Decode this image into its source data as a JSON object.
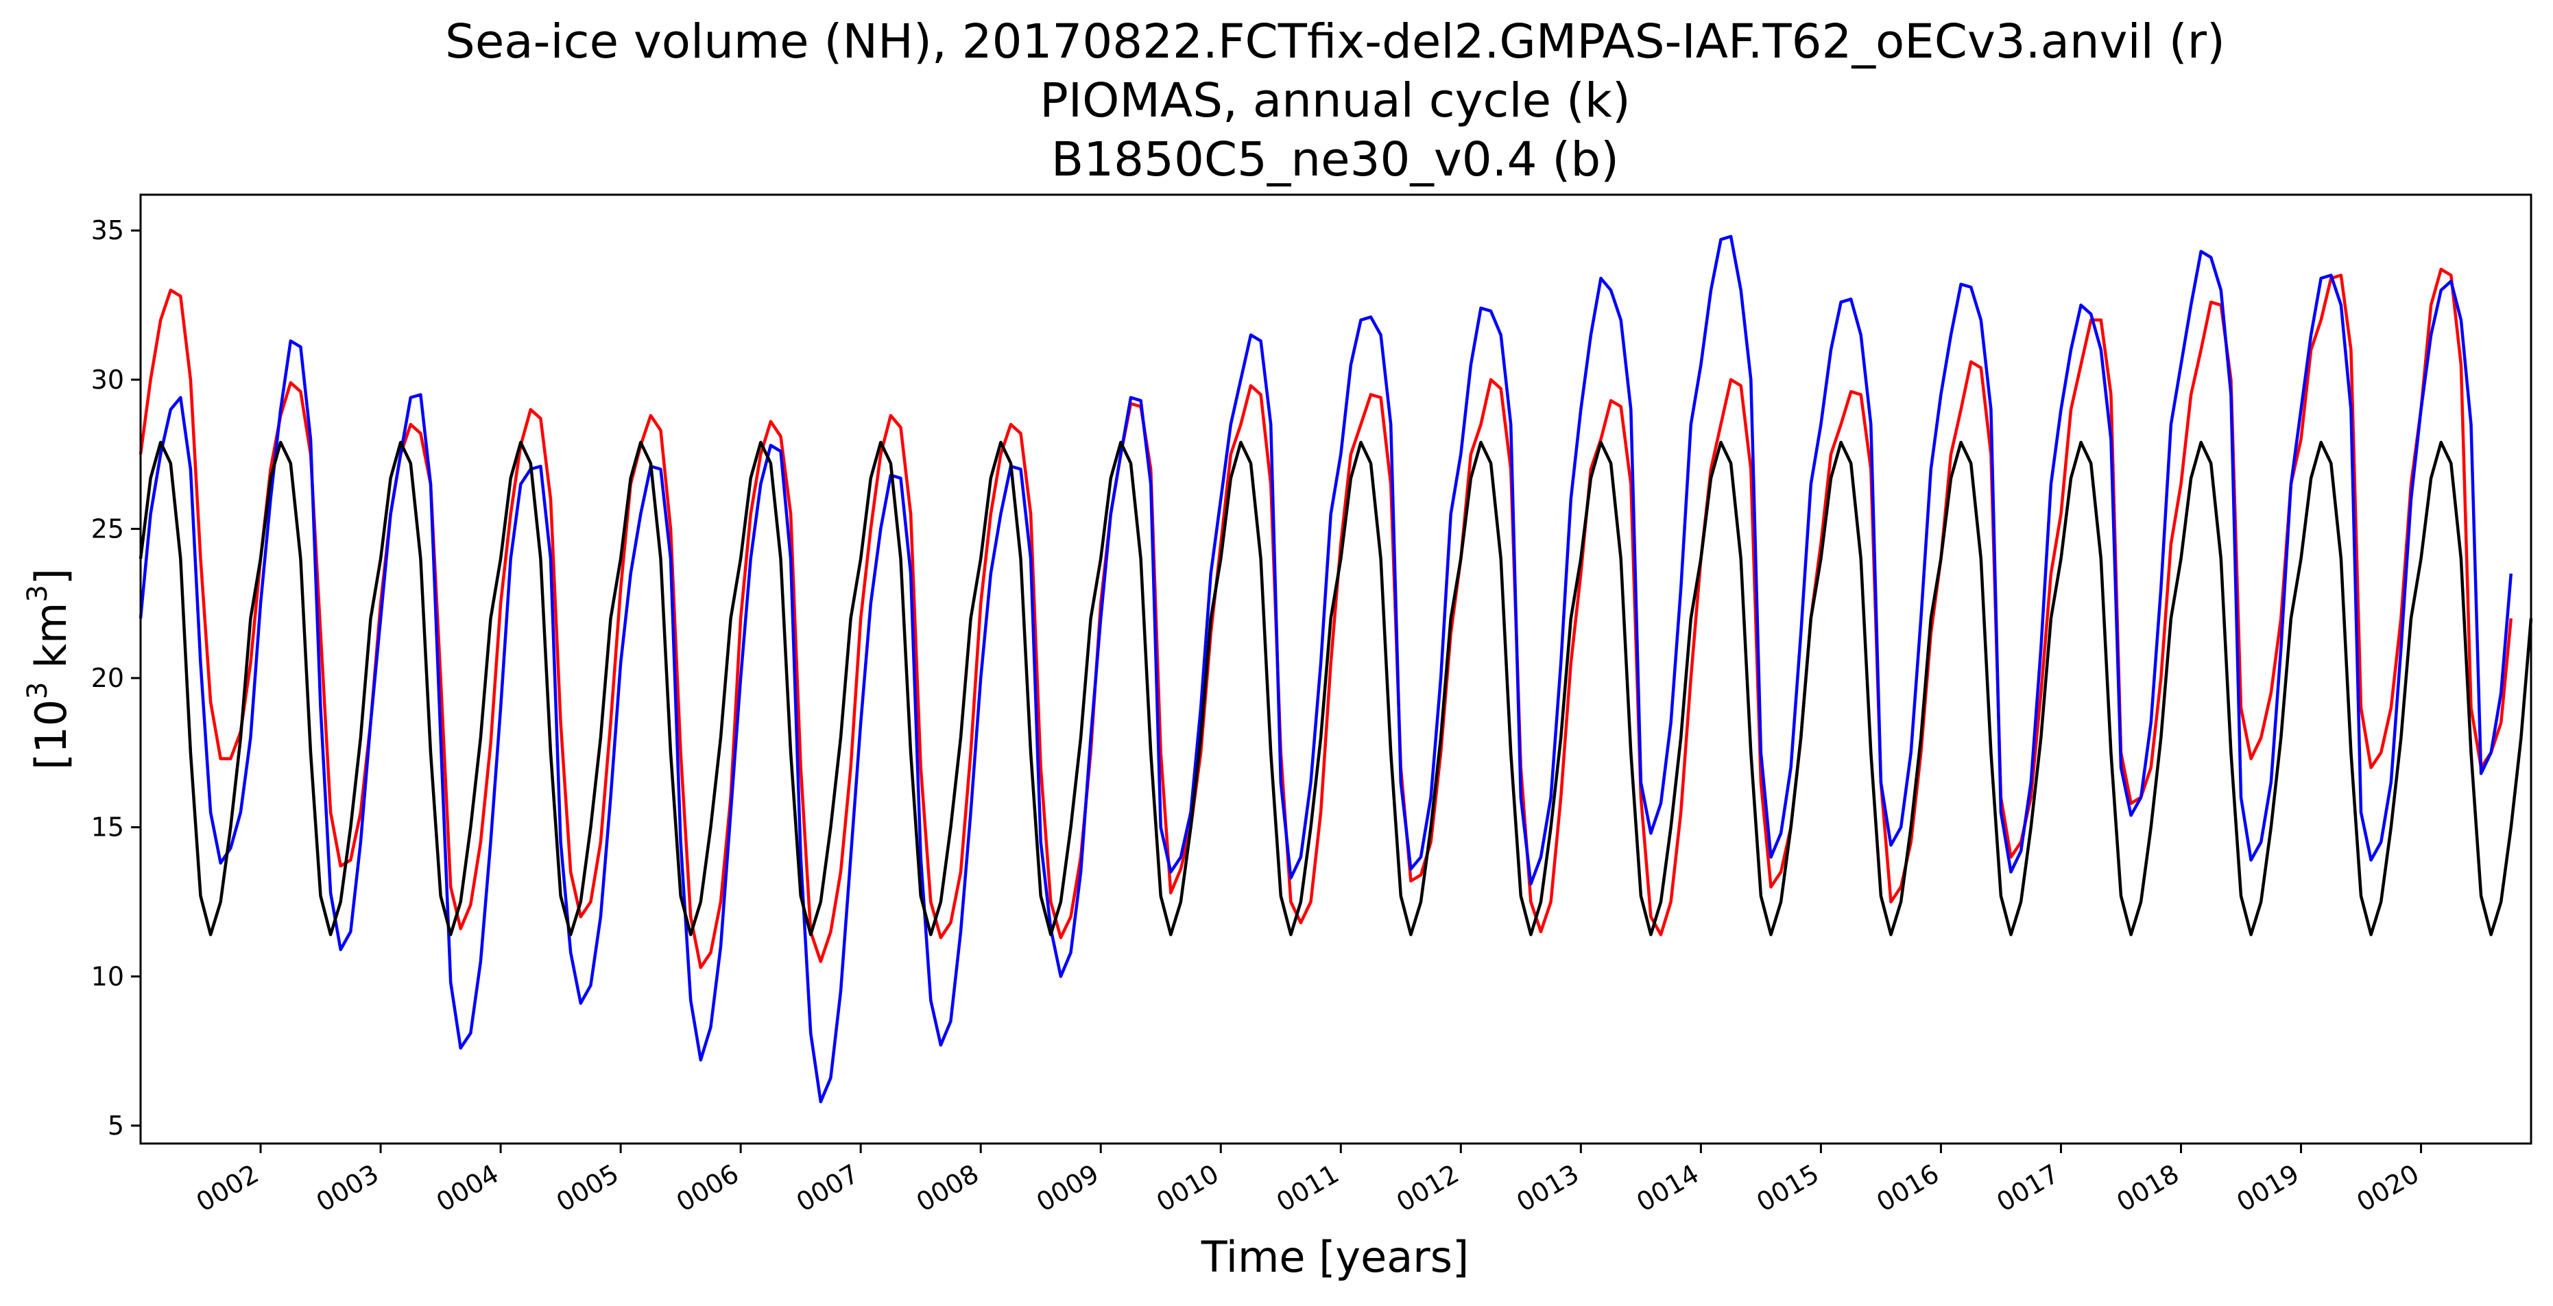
{
  "chart_data": {
    "type": "line",
    "title_lines": [
      "Sea-ice volume (NH), 20170822.FCTfix-del2.GMPAS-IAF.T62_oECv3.anvil (r)",
      "PIOMAS, annual cycle (k)",
      "B1850C5_ne30_v0.4 (b)"
    ],
    "xlabel": "Time [years]",
    "ylabel": {
      "prefix": "[10",
      "sup1": "3",
      "mid": " km",
      "sup2": "3",
      "suffix": "]"
    },
    "xlim": [
      1.0,
      20.9167
    ],
    "ylim": [
      4.4,
      36.2
    ],
    "x_ticks": [
      {
        "value": 2,
        "label": "0002"
      },
      {
        "value": 3,
        "label": "0003"
      },
      {
        "value": 4,
        "label": "0004"
      },
      {
        "value": 5,
        "label": "0005"
      },
      {
        "value": 6,
        "label": "0006"
      },
      {
        "value": 7,
        "label": "0007"
      },
      {
        "value": 8,
        "label": "0008"
      },
      {
        "value": 9,
        "label": "0009"
      },
      {
        "value": 10,
        "label": "0010"
      },
      {
        "value": 11,
        "label": "0011"
      },
      {
        "value": 12,
        "label": "0012"
      },
      {
        "value": 13,
        "label": "0013"
      },
      {
        "value": 14,
        "label": "0014"
      },
      {
        "value": 15,
        "label": "0015"
      },
      {
        "value": 16,
        "label": "0016"
      },
      {
        "value": 17,
        "label": "0017"
      },
      {
        "value": 18,
        "label": "0018"
      },
      {
        "value": 19,
        "label": "0019"
      },
      {
        "value": 20,
        "label": "0020"
      }
    ],
    "y_ticks": [
      {
        "value": 5,
        "label": "5"
      },
      {
        "value": 10,
        "label": "10"
      },
      {
        "value": 15,
        "label": "15"
      },
      {
        "value": 20,
        "label": "20"
      },
      {
        "value": 25,
        "label": "25"
      },
      {
        "value": 30,
        "label": "30"
      },
      {
        "value": 35,
        "label": "35"
      }
    ],
    "grid": false,
    "legend": "none",
    "x_start": 1.0,
    "x_step": 0.0833333,
    "series": [
      {
        "color": "#ff0000",
        "values": [
          27.5,
          30.0,
          32.0,
          33.0,
          32.8,
          30.0,
          24.0,
          19.2,
          17.3,
          17.3,
          18.2,
          20.5,
          24.0,
          27.0,
          28.8,
          29.9,
          29.6,
          27.5,
          21.5,
          15.5,
          13.7,
          13.9,
          15.5,
          18.5,
          22.5,
          25.5,
          27.5,
          28.5,
          28.2,
          26.5,
          20.0,
          13.0,
          11.6,
          12.4,
          14.5,
          17.8,
          22.5,
          25.5,
          27.8,
          29.0,
          28.7,
          26.0,
          18.5,
          13.5,
          12.0,
          12.5,
          14.5,
          18.5,
          23.0,
          26.5,
          27.8,
          28.8,
          28.3,
          25.0,
          17.5,
          12.0,
          10.3,
          10.8,
          12.5,
          16.0,
          22.0,
          25.5,
          27.5,
          28.6,
          28.1,
          25.5,
          17.0,
          11.5,
          10.5,
          11.5,
          13.5,
          17.0,
          22.0,
          25.0,
          27.5,
          28.8,
          28.4,
          25.5,
          17.0,
          12.5,
          11.3,
          11.8,
          13.5,
          17.5,
          22.5,
          25.5,
          27.5,
          28.5,
          28.2,
          25.5,
          17.0,
          12.5,
          11.3,
          12.0,
          14.0,
          17.5,
          22.5,
          25.5,
          27.5,
          29.2,
          29.1,
          27.0,
          17.5,
          12.8,
          13.6,
          15.0,
          17.5,
          21.5,
          24.5,
          27.5,
          28.5,
          29.8,
          29.5,
          26.5,
          17.5,
          12.5,
          11.8,
          12.5,
          15.5,
          20.5,
          24.5,
          27.5,
          28.5,
          29.5,
          29.4,
          26.5,
          17.0,
          13.2,
          13.4,
          14.5,
          17.5,
          21.5,
          24.0,
          27.5,
          28.5,
          30.0,
          29.7,
          27.0,
          17.0,
          12.5,
          11.5,
          12.5,
          16.0,
          20.5,
          23.5,
          27.0,
          28.0,
          29.3,
          29.1,
          26.5,
          16.0,
          12.0,
          11.4,
          12.5,
          15.5,
          20.0,
          24.0,
          27.0,
          28.5,
          30.0,
          29.8,
          27.0,
          16.5,
          13.0,
          13.5,
          15.0,
          18.0,
          22.0,
          24.5,
          27.5,
          28.5,
          29.6,
          29.5,
          27.0,
          16.5,
          12.5,
          13.0,
          14.5,
          17.5,
          21.5,
          24.0,
          27.5,
          29.0,
          30.6,
          30.4,
          27.5,
          16.0,
          14.0,
          14.5,
          16.0,
          19.5,
          23.5,
          25.5,
          29.0,
          30.5,
          32.0,
          32.0,
          29.5,
          17.5,
          15.8,
          16.0,
          17.0,
          20.0,
          24.5,
          26.5,
          29.5,
          31.0,
          32.6,
          32.5,
          30.0,
          19.0,
          17.3,
          18.0,
          19.5,
          22.0,
          26.5,
          28.0,
          31.0,
          32.0,
          33.4,
          33.5,
          31.0,
          19.0,
          17.0,
          17.5,
          19.0,
          22.0,
          26.5,
          29.0,
          32.5,
          33.7,
          33.5,
          30.5,
          19.0,
          17.0,
          17.5,
          18.5,
          22.0
        ]
      },
      {
        "color": "#0000ff",
        "values": [
          22.0,
          25.5,
          27.5,
          29.0,
          29.4,
          27.0,
          20.5,
          15.5,
          13.8,
          14.3,
          15.5,
          18.0,
          22.5,
          26.0,
          29.0,
          31.3,
          31.1,
          28.0,
          19.0,
          12.8,
          10.9,
          11.5,
          14.5,
          18.5,
          22.0,
          25.5,
          27.5,
          29.4,
          29.5,
          26.5,
          18.0,
          9.8,
          7.6,
          8.1,
          10.5,
          14.5,
          19.0,
          24.0,
          26.5,
          27.0,
          27.1,
          24.0,
          14.5,
          10.8,
          9.1,
          9.7,
          12.0,
          16.0,
          20.5,
          23.5,
          25.5,
          27.1,
          27.0,
          24.0,
          14.5,
          9.2,
          7.2,
          8.3,
          11.0,
          15.5,
          20.0,
          24.0,
          26.5,
          27.8,
          27.6,
          24.0,
          14.0,
          8.1,
          5.8,
          6.6,
          9.5,
          14.0,
          18.5,
          22.5,
          25.0,
          26.8,
          26.7,
          23.5,
          14.0,
          9.2,
          7.7,
          8.5,
          11.5,
          15.5,
          20.0,
          23.5,
          25.5,
          27.1,
          27.0,
          24.0,
          14.5,
          11.6,
          10.0,
          10.8,
          13.5,
          18.0,
          22.0,
          25.5,
          27.5,
          29.4,
          29.3,
          26.5,
          15.0,
          13.5,
          14.0,
          15.5,
          19.0,
          23.5,
          26.0,
          28.5,
          30.0,
          31.5,
          31.3,
          28.5,
          16.5,
          13.3,
          14.0,
          16.5,
          20.5,
          25.5,
          27.5,
          30.5,
          32.0,
          32.1,
          31.5,
          28.5,
          16.5,
          13.6,
          14.0,
          16.0,
          20.0,
          25.5,
          27.5,
          30.5,
          32.4,
          32.3,
          31.5,
          28.5,
          16.0,
          13.1,
          14.0,
          16.0,
          20.5,
          26.0,
          29.0,
          31.5,
          33.4,
          33.0,
          32.0,
          29.0,
          16.5,
          14.8,
          15.8,
          18.5,
          23.0,
          28.5,
          30.5,
          33.0,
          34.7,
          34.8,
          33.0,
          30.0,
          17.5,
          14.0,
          14.8,
          17.0,
          21.5,
          26.5,
          28.5,
          31.0,
          32.6,
          32.7,
          31.5,
          28.5,
          16.5,
          14.4,
          15.0,
          17.5,
          22.0,
          27.0,
          29.5,
          31.5,
          33.2,
          33.1,
          32.0,
          29.0,
          15.5,
          13.5,
          14.2,
          16.5,
          21.0,
          26.5,
          29.0,
          31.0,
          32.5,
          32.2,
          31.0,
          28.0,
          17.0,
          15.4,
          16.0,
          18.5,
          23.0,
          28.5,
          30.5,
          32.5,
          34.3,
          34.1,
          33.0,
          29.5,
          16.0,
          13.9,
          14.5,
          16.5,
          21.0,
          26.5,
          29.0,
          31.5,
          33.4,
          33.5,
          32.5,
          29.0,
          15.5,
          13.9,
          14.5,
          16.5,
          21.0,
          26.0,
          29.0,
          31.5,
          33.0,
          33.3,
          32.0,
          28.5,
          16.8,
          17.5,
          19.5,
          23.5
        ]
      },
      {
        "color": "#000000",
        "values": [
          24.0,
          26.7,
          27.9,
          27.2,
          24.0,
          17.5,
          12.7,
          11.4,
          12.5,
          15.0,
          18.0,
          22.0,
          24.0,
          26.7,
          27.9,
          27.2,
          24.0,
          17.5,
          12.7,
          11.4,
          12.5,
          15.0,
          18.0,
          22.0,
          24.0,
          26.7,
          27.9,
          27.2,
          24.0,
          17.5,
          12.7,
          11.4,
          12.5,
          15.0,
          18.0,
          22.0,
          24.0,
          26.7,
          27.9,
          27.2,
          24.0,
          17.5,
          12.7,
          11.4,
          12.5,
          15.0,
          18.0,
          22.0,
          24.0,
          26.7,
          27.9,
          27.2,
          24.0,
          17.5,
          12.7,
          11.4,
          12.5,
          15.0,
          18.0,
          22.0,
          24.0,
          26.7,
          27.9,
          27.2,
          24.0,
          17.5,
          12.7,
          11.4,
          12.5,
          15.0,
          18.0,
          22.0,
          24.0,
          26.7,
          27.9,
          27.2,
          24.0,
          17.5,
          12.7,
          11.4,
          12.5,
          15.0,
          18.0,
          22.0,
          24.0,
          26.7,
          27.9,
          27.2,
          24.0,
          17.5,
          12.7,
          11.4,
          12.5,
          15.0,
          18.0,
          22.0,
          24.0,
          26.7,
          27.9,
          27.2,
          24.0,
          17.5,
          12.7,
          11.4,
          12.5,
          15.0,
          18.0,
          22.0,
          24.0,
          26.7,
          27.9,
          27.2,
          24.0,
          17.5,
          12.7,
          11.4,
          12.5,
          15.0,
          18.0,
          22.0,
          24.0,
          26.7,
          27.9,
          27.2,
          24.0,
          17.5,
          12.7,
          11.4,
          12.5,
          15.0,
          18.0,
          22.0,
          24.0,
          26.7,
          27.9,
          27.2,
          24.0,
          17.5,
          12.7,
          11.4,
          12.5,
          15.0,
          18.0,
          22.0,
          24.0,
          26.7,
          27.9,
          27.2,
          24.0,
          17.5,
          12.7,
          11.4,
          12.5,
          15.0,
          18.0,
          22.0,
          24.0,
          26.7,
          27.9,
          27.2,
          24.0,
          17.5,
          12.7,
          11.4,
          12.5,
          15.0,
          18.0,
          22.0,
          24.0,
          26.7,
          27.9,
          27.2,
          24.0,
          17.5,
          12.7,
          11.4,
          12.5,
          15.0,
          18.0,
          22.0,
          24.0,
          26.7,
          27.9,
          27.2,
          24.0,
          17.5,
          12.7,
          11.4,
          12.5,
          15.0,
          18.0,
          22.0,
          24.0,
          26.7,
          27.9,
          27.2,
          24.0,
          17.5,
          12.7,
          11.4,
          12.5,
          15.0,
          18.0,
          22.0,
          24.0,
          26.7,
          27.9,
          27.2,
          24.0,
          17.5,
          12.7,
          11.4,
          12.5,
          15.0,
          18.0,
          22.0,
          24.0,
          26.7,
          27.9,
          27.2,
          24.0,
          17.5,
          12.7,
          11.4,
          12.5,
          15.0,
          18.0,
          22.0,
          24.0,
          26.7,
          27.9,
          27.2,
          24.0,
          17.5,
          12.7,
          11.4,
          12.5,
          15.0,
          18.0,
          22.0
        ]
      }
    ]
  }
}
